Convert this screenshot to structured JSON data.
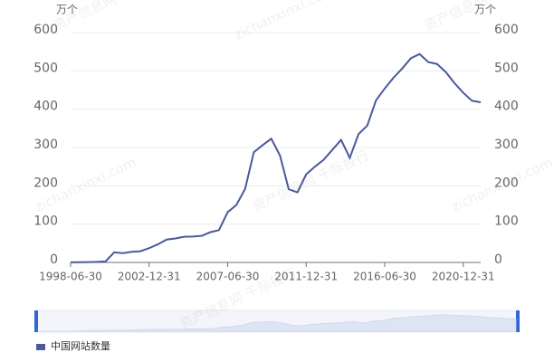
{
  "chart_data": {
    "type": "line",
    "y_label": "万个",
    "y2_label": "万个",
    "watermark": [
      "资产信息网 千际投行",
      "zichanxinxi.com"
    ],
    "categories": [
      "1998-06-30",
      null,
      null,
      null,
      null,
      null,
      null,
      null,
      null,
      "2002-12-31",
      null,
      null,
      null,
      null,
      null,
      null,
      null,
      null,
      "2007-06-30",
      null,
      null,
      null,
      null,
      null,
      null,
      null,
      null,
      "2011-12-31",
      null,
      null,
      null,
      null,
      null,
      null,
      null,
      null,
      "2016-06-30",
      null,
      null,
      null,
      null,
      null,
      null,
      null,
      null,
      "2020-12-31",
      null,
      null
    ],
    "series": [
      {
        "name": "中国网站数量",
        "color": "#4a5a9c",
        "values": [
          0.36,
          0.53,
          0.92,
          1.5,
          2.7,
          26.5,
          24.2,
          27.7,
          29.3,
          37.2,
          47.3,
          59.6,
          62.6,
          66.9,
          67.7,
          69.4,
          78.8,
          84.3,
          131,
          150,
          191.9,
          287.8,
          306.1,
          323,
          279,
          191,
          183,
          230,
          250,
          268,
          294,
          320,
          273,
          335,
          357,
          423,
          454,
          482,
          506,
          533,
          544,
          523,
          518,
          497,
          468,
          443,
          422,
          418
        ]
      }
    ],
    "ylim": [
      0,
      600
    ],
    "yticks": [
      0,
      100,
      200,
      300,
      400,
      500,
      600
    ],
    "y2lim": [
      0,
      600
    ],
    "y2ticks": [
      0,
      100,
      200,
      300,
      400,
      500,
      600
    ],
    "grid": true
  }
}
